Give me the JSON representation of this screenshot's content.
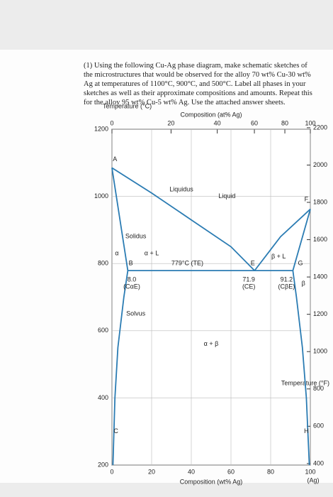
{
  "question": "(1) Using the following Cu-Ag phase diagram, make schematic sketches of the microstructures that would be observed for the alloy 70 wt% Cu-30 wt% Ag at temperatures of 1100°C, 900°C, and 500°C. Label all phases in your sketches as well as their approximate compositions and amounts. Repeat this for the alloy 95 wt% Cu-5 wt% Ag. Use the attached answer sheets.",
  "chart_data": {
    "type": "phase-diagram",
    "x_label": "Composition (wt% Ag)",
    "x_top_label": "Composition (at% Ag)",
    "y_label": "Temperature (°C)",
    "y2_label": "Temperature (°F)",
    "x_end_label": "(Ag)",
    "xlim": [
      0,
      100
    ],
    "xticks": [
      0,
      20,
      40,
      60,
      80,
      100
    ],
    "x_top_ticks": [
      0,
      20,
      40,
      60,
      80,
      100
    ],
    "ylim": [
      200,
      1200
    ],
    "yticks": [
      200,
      400,
      600,
      800,
      1000,
      1200
    ],
    "y2lim": [
      392,
      2192
    ],
    "y2ticks": [
      400,
      600,
      800,
      1000,
      1200,
      1400,
      1600,
      1800,
      2000,
      2200
    ],
    "grid": true,
    "color": "#2b7cb3",
    "curves": [
      {
        "x": [
          0,
          20,
          40,
          60,
          71.9
        ],
        "y": [
          1085,
          1010,
          930,
          850,
          779
        ]
      },
      {
        "x": [
          71.9,
          85,
          100
        ],
        "y": [
          779,
          880,
          962
        ]
      },
      {
        "x": [
          0,
          8.0
        ],
        "y": [
          1085,
          779
        ]
      },
      {
        "x": [
          91.2,
          100
        ],
        "y": [
          779,
          962
        ]
      },
      {
        "x": [
          8.0,
          6,
          3,
          1.5,
          0.5
        ],
        "y": [
          779,
          700,
          550,
          400,
          200
        ]
      },
      {
        "x": [
          91.2,
          93,
          96,
          98,
          99.5
        ],
        "y": [
          779,
          700,
          550,
          400,
          200
        ]
      },
      {
        "x": [
          8.0,
          91.2
        ],
        "y": [
          779,
          779
        ]
      }
    ],
    "labels": [
      "Liquid",
      "Liquidus",
      "Solidus",
      "α + L",
      "α",
      "β + L",
      "β",
      "α + β",
      "Solvus",
      "A",
      "B",
      "C",
      "E",
      "F",
      "G",
      "H",
      "779°C (TE)",
      "8.0",
      "(CαE)",
      "71.9",
      "(CE)",
      "91.2",
      "(CβE)"
    ]
  }
}
